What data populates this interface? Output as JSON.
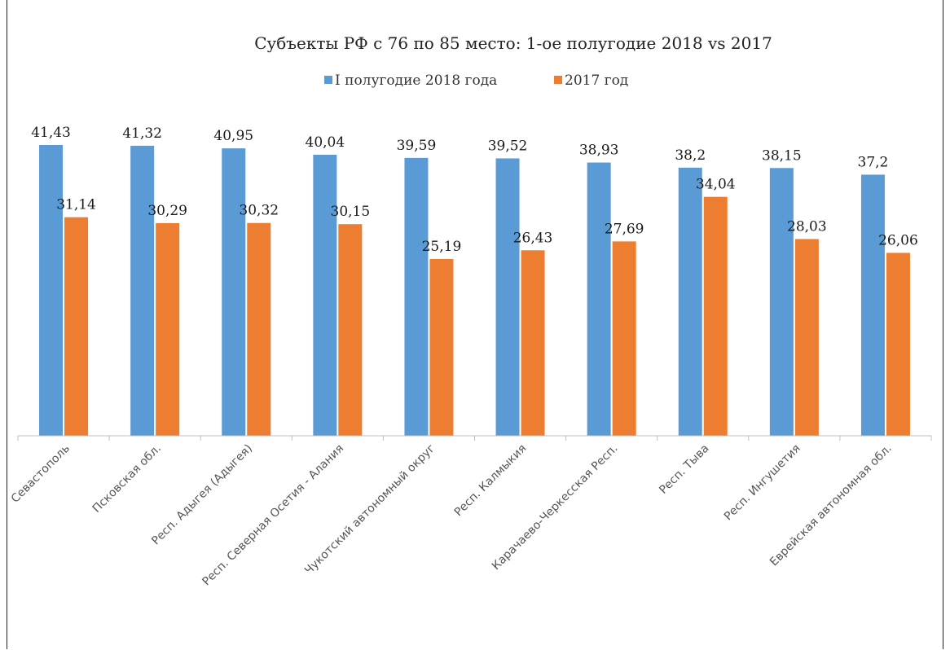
{
  "chart_data": {
    "type": "bar",
    "title": "Субъекты РФ с 76 по 85 место: 1-ое полугодие 2018 vs 2017",
    "categories": [
      "Севастополь",
      "Псковская обл.",
      "Респ. Адыгея (Адыгея)",
      "Респ. Северная Осетия - Алания",
      "Чукотский автономный округ",
      "Респ. Калмыкия",
      "Карачаево-Черкесская Респ.",
      "Респ. Тыва",
      "Респ. Ингушетия",
      "Еврейская автономная обл."
    ],
    "series": [
      {
        "name": "I полугодие 2018 года",
        "color": "#5b9bd5",
        "values": [
          41.43,
          41.32,
          40.95,
          40.04,
          39.59,
          39.52,
          38.93,
          38.2,
          38.15,
          37.2
        ],
        "labels": [
          "41,43",
          "41,32",
          "40,95",
          "40,04",
          "39,59",
          "39,52",
          "38,93",
          "38,2",
          "38,15",
          "37,2"
        ]
      },
      {
        "name": "2017 год",
        "color": "#ed7d31",
        "values": [
          31.14,
          30.29,
          30.32,
          30.15,
          25.19,
          26.43,
          27.69,
          34.04,
          28.03,
          26.06
        ],
        "labels": [
          "31,14",
          "30,29",
          "30,32",
          "30,15",
          "25,19",
          "26,43",
          "27,69",
          "34,04",
          "28,03",
          "26,06"
        ]
      }
    ],
    "xlabel": "",
    "ylabel": "",
    "ylim": [
      0,
      41.43
    ],
    "grid": false,
    "legend_position": "top"
  }
}
